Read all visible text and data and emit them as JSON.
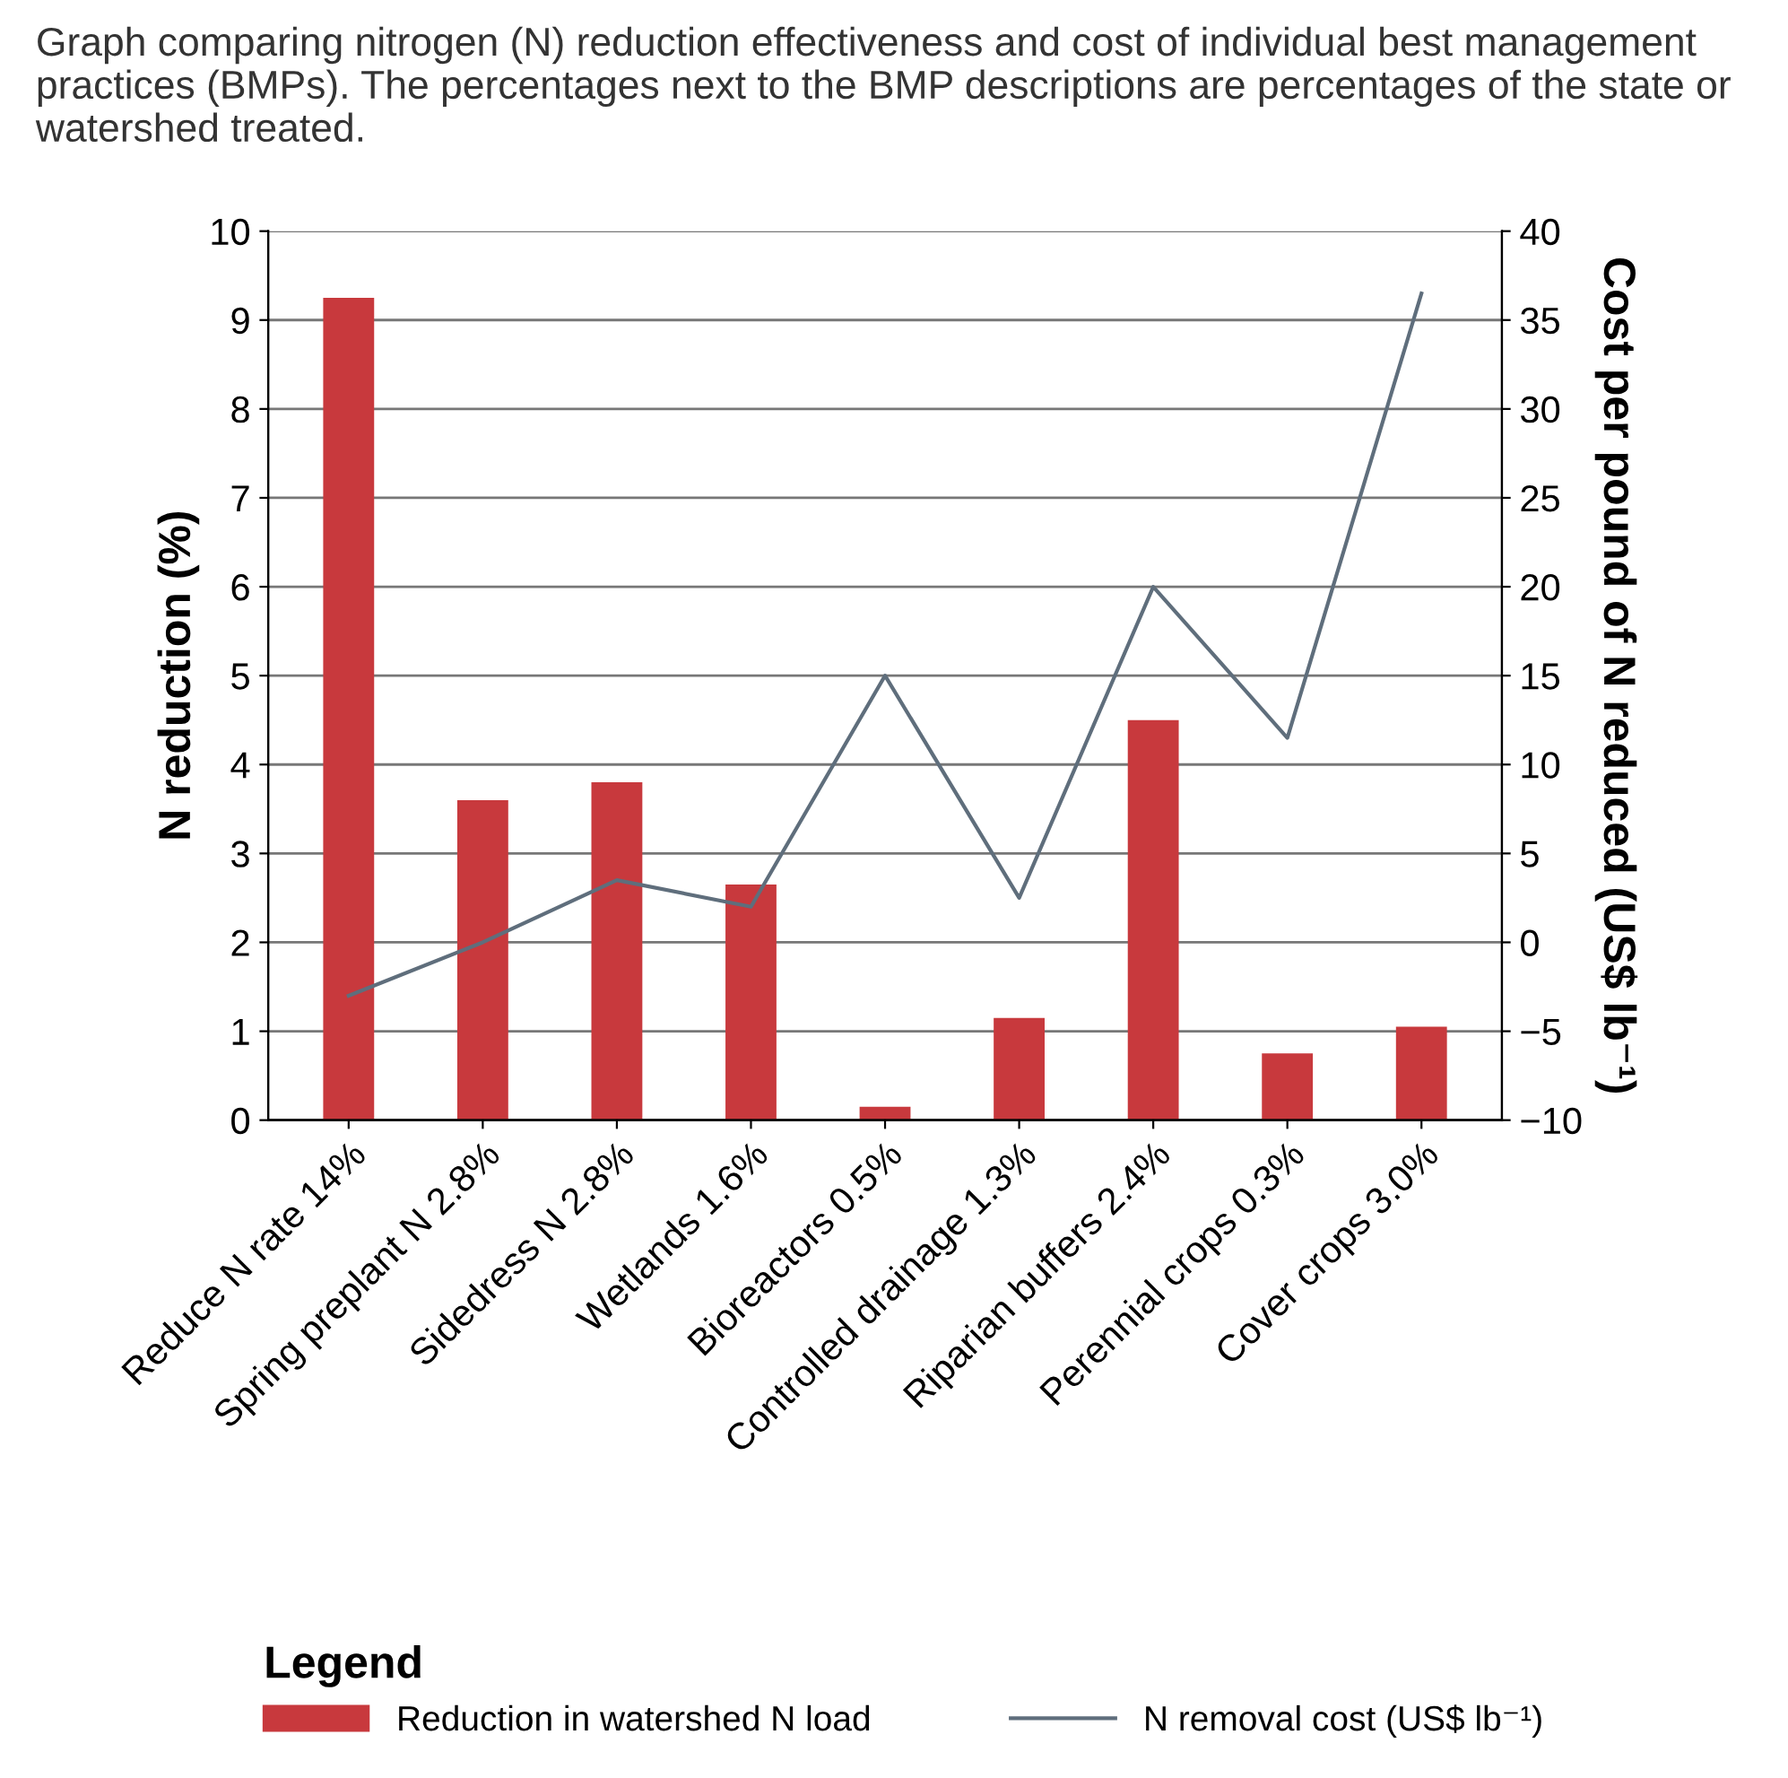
{
  "chart_data": {
    "type": "bar",
    "title": "Graph comparing nitrogen (N) reduction effectiveness and cost of individual best management practices (BMPs). The percentages next to the BMP descriptions are percentages of the state or watershed treated.",
    "ylabel": "N reduction (%)",
    "y2label": "Cost per pound of N reduced (US$ lb⁻¹)",
    "legend_title": "Legend",
    "categories": [
      "Reduce N rate 14%",
      "Spring preplant N 2.8%",
      "Sidedress N 2.8%",
      "Wetlands 1.6%",
      "Bioreactors 0.5%",
      "Controlled drainage 1.3%",
      "Riparian buffers 2.4%",
      "Perennial crops 0.3%",
      "Cover crops 3.0%"
    ],
    "series": [
      {
        "name": "Reduction in watershed N load",
        "color": "#c8393d",
        "values": [
          9.25,
          3.6,
          3.8,
          2.65,
          0.15,
          1.15,
          4.5,
          0.75,
          1.05
        ]
      },
      {
        "name": "N removal cost (US$ lb⁻¹)",
        "type": "line",
        "axis": "y2",
        "color": "#5f6e7c",
        "values": [
          -3,
          0,
          3.5,
          2,
          15,
          2.5,
          20,
          11.5,
          36.5
        ]
      }
    ],
    "ylim": [
      0,
      10
    ],
    "yticks": [
      0,
      1,
      2,
      3,
      4,
      5,
      6,
      7,
      8,
      9,
      10
    ],
    "y2lim": [
      -10,
      40
    ],
    "y2ticks": [
      -10,
      -5,
      0,
      5,
      10,
      15,
      20,
      25,
      30,
      35,
      40
    ],
    "grid": "y",
    "legend": "bottom",
    "marker": "none",
    "line_style": "solid"
  }
}
